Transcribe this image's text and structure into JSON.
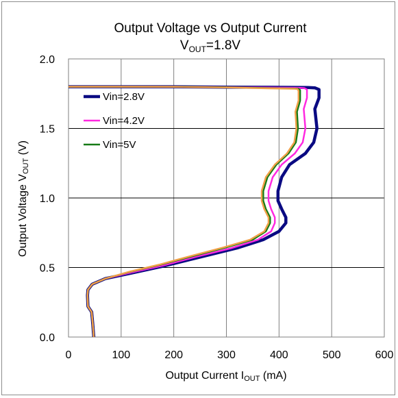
{
  "chart_data": {
    "type": "line",
    "title": {
      "prefix": "V",
      "subscript": "OUT",
      "suffix": "=1.8V",
      "main": "Output Voltage vs Output Current"
    },
    "xlabel": {
      "prefix": "Output Current I",
      "subscript": "OUT",
      "suffix": " (mA)"
    },
    "ylabel": {
      "prefix": "Output Voltage V",
      "subscript": "OUT",
      "suffix": " (V)"
    },
    "xlim": [
      0,
      600
    ],
    "ylim": [
      0.0,
      2.0
    ],
    "xticks": [
      "0",
      "100",
      "200",
      "300",
      "400",
      "500",
      "600"
    ],
    "yticks": [
      "0.0",
      "0.5",
      "1.0",
      "1.5",
      "2.0"
    ],
    "grid": true,
    "legend_position": "top-left",
    "series": [
      {
        "name": "Vin=2.8V",
        "color": "#0a0a82",
        "x": [
          -5,
          100,
          200,
          300,
          380,
          455,
          468,
          476,
          476,
          468,
          472,
          466,
          450,
          420,
          405,
          398,
          398,
          405,
          413,
          413,
          400,
          370,
          320,
          250,
          180,
          120,
          70,
          45,
          37,
          36,
          37,
          44,
          46,
          48
        ],
        "y": [
          1.8,
          1.8,
          1.8,
          1.797,
          1.796,
          1.794,
          1.792,
          1.78,
          1.72,
          1.64,
          1.5,
          1.4,
          1.32,
          1.24,
          1.15,
          1.05,
          0.98,
          0.92,
          0.86,
          0.82,
          0.76,
          0.7,
          0.64,
          0.575,
          0.51,
          0.46,
          0.42,
          0.38,
          0.34,
          0.3,
          0.22,
          0.18,
          0.1,
          0.0
        ]
      },
      {
        "name": "Vin=4.2V",
        "color": "#ff28e0",
        "x": [
          -5,
          100,
          200,
          300,
          380,
          440,
          448,
          453,
          453,
          447,
          450,
          445,
          430,
          405,
          388,
          380,
          380,
          385,
          392,
          392,
          385,
          360,
          310,
          245,
          180,
          120,
          70,
          45,
          37,
          36,
          37,
          44,
          46,
          48
        ],
        "y": [
          1.8,
          1.8,
          1.8,
          1.797,
          1.794,
          1.792,
          1.79,
          1.78,
          1.72,
          1.64,
          1.5,
          1.4,
          1.32,
          1.24,
          1.15,
          1.05,
          0.98,
          0.92,
          0.86,
          0.82,
          0.76,
          0.7,
          0.64,
          0.58,
          0.515,
          0.465,
          0.42,
          0.38,
          0.34,
          0.3,
          0.22,
          0.18,
          0.1,
          0.0
        ]
      },
      {
        "name": "Vin=5V",
        "color": "#157a15",
        "x": [
          -5,
          100,
          200,
          300,
          380,
          430,
          437,
          440,
          440,
          434,
          436,
          432,
          418,
          395,
          378,
          370,
          370,
          375,
          383,
          383,
          375,
          350,
          300,
          240,
          175,
          118,
          70,
          45,
          37,
          36,
          37,
          44,
          46,
          48
        ],
        "y": [
          1.8,
          1.8,
          1.8,
          1.796,
          1.79,
          1.787,
          1.785,
          1.775,
          1.7,
          1.62,
          1.5,
          1.4,
          1.32,
          1.24,
          1.15,
          1.05,
          0.98,
          0.92,
          0.86,
          0.82,
          0.76,
          0.7,
          0.645,
          0.585,
          0.52,
          0.47,
          0.42,
          0.38,
          0.34,
          0.3,
          0.22,
          0.18,
          0.1,
          0.0
        ]
      },
      {
        "name": "",
        "color": "#f0a048",
        "x": [
          -5,
          100,
          200,
          300,
          380,
          430,
          435,
          437,
          437,
          431,
          433,
          429,
          415,
          392,
          375,
          367,
          367,
          372,
          380,
          380,
          372,
          345,
          295,
          235,
          172,
          116,
          70,
          45,
          37,
          36,
          37,
          44,
          46,
          48
        ],
        "y": [
          1.8,
          1.8,
          1.799,
          1.795,
          1.788,
          1.785,
          1.783,
          1.772,
          1.7,
          1.62,
          1.5,
          1.4,
          1.32,
          1.24,
          1.15,
          1.05,
          0.98,
          0.92,
          0.86,
          0.82,
          0.76,
          0.7,
          0.645,
          0.585,
          0.52,
          0.47,
          0.42,
          0.38,
          0.34,
          0.3,
          0.22,
          0.18,
          0.1,
          0.0
        ]
      }
    ]
  }
}
